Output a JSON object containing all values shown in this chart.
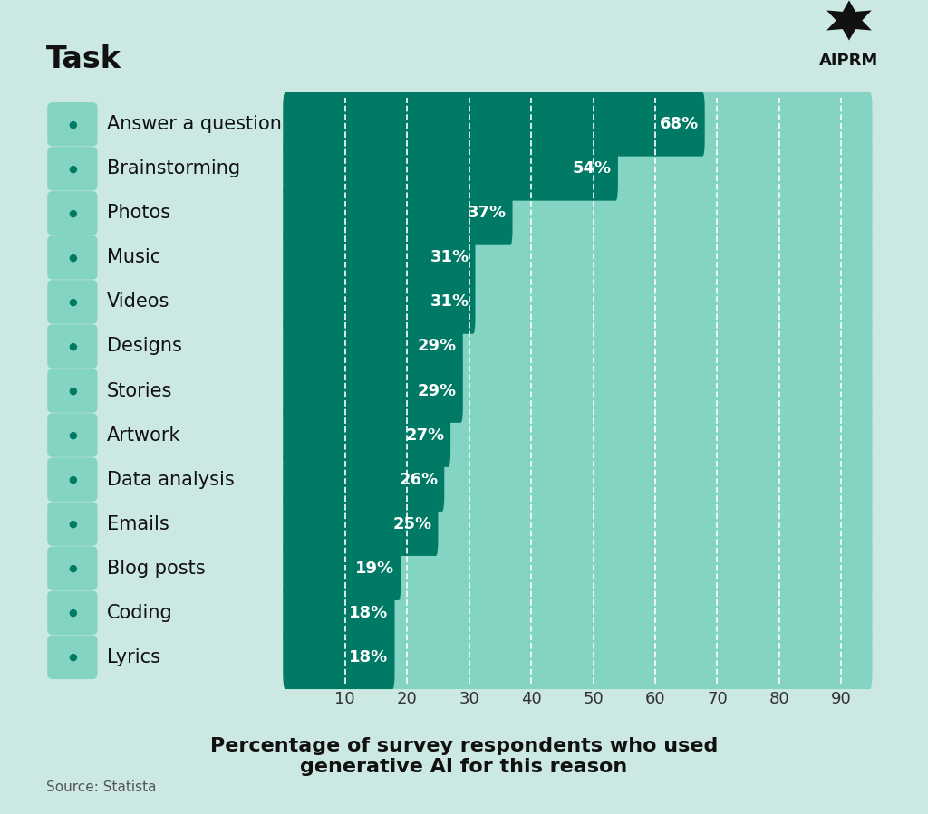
{
  "categories": [
    "Answer a question",
    "Brainstorming",
    "Photos",
    "Music",
    "Videos",
    "Designs",
    "Stories",
    "Artwork",
    "Data analysis",
    "Emails",
    "Blog posts",
    "Coding",
    "Lyrics"
  ],
  "values": [
    68,
    54,
    37,
    31,
    31,
    29,
    29,
    27,
    26,
    25,
    19,
    18,
    18
  ],
  "bar_color_dark": "#007A65",
  "bar_color_light": "#84D4C4",
  "background_color": "#CBE8E2",
  "title": "Task",
  "xlabel_line1": "Percentage of survey respondents who used",
  "xlabel_line2": "generative AI for this reason",
  "source": "Source: Statista",
  "bar_max": 95,
  "xticks": [
    10,
    20,
    30,
    40,
    50,
    60,
    70,
    80,
    90
  ],
  "title_fontsize": 24,
  "label_fontsize": 15,
  "value_fontsize": 13,
  "xlabel_fontsize": 16,
  "source_fontsize": 11,
  "xtick_fontsize": 13,
  "icon_color": "#007A65",
  "icon_bg": "#84D4C4"
}
